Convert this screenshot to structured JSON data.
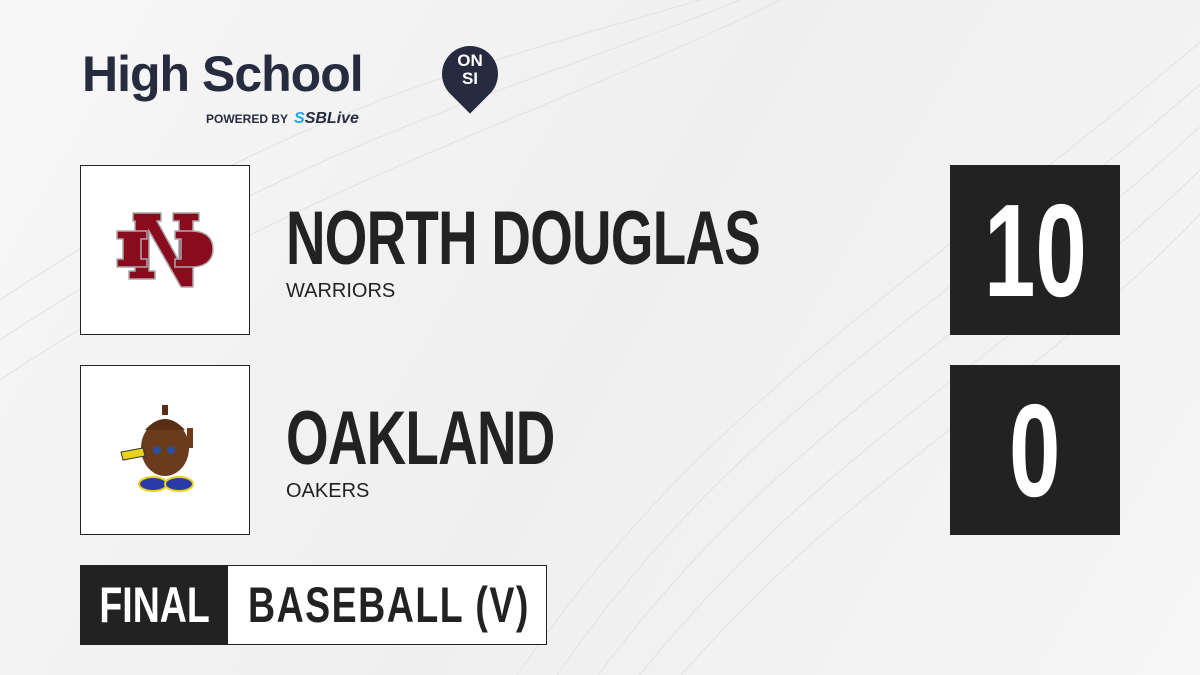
{
  "brand": {
    "title": "High School",
    "badge_line1": "ON",
    "badge_line2": "SI",
    "powered_by": "POWERED BY",
    "partner_prefix": "S",
    "partner": "SBLive"
  },
  "teams": [
    {
      "name": "NORTH DOUGLAS",
      "mascot": "WARRIORS",
      "score": "10",
      "logo": "ND monogram",
      "logo_color": "#8a0a1e"
    },
    {
      "name": "OAKLAND",
      "mascot": "OAKERS",
      "score": "0",
      "logo": "acorn mascot",
      "logo_color": "#6b3b1c"
    }
  ],
  "status": "FINAL",
  "sport": "BASEBALL (V)",
  "colors": {
    "dark": "#222222",
    "brand_navy": "#262b40",
    "accent": "#1ea7e4"
  }
}
